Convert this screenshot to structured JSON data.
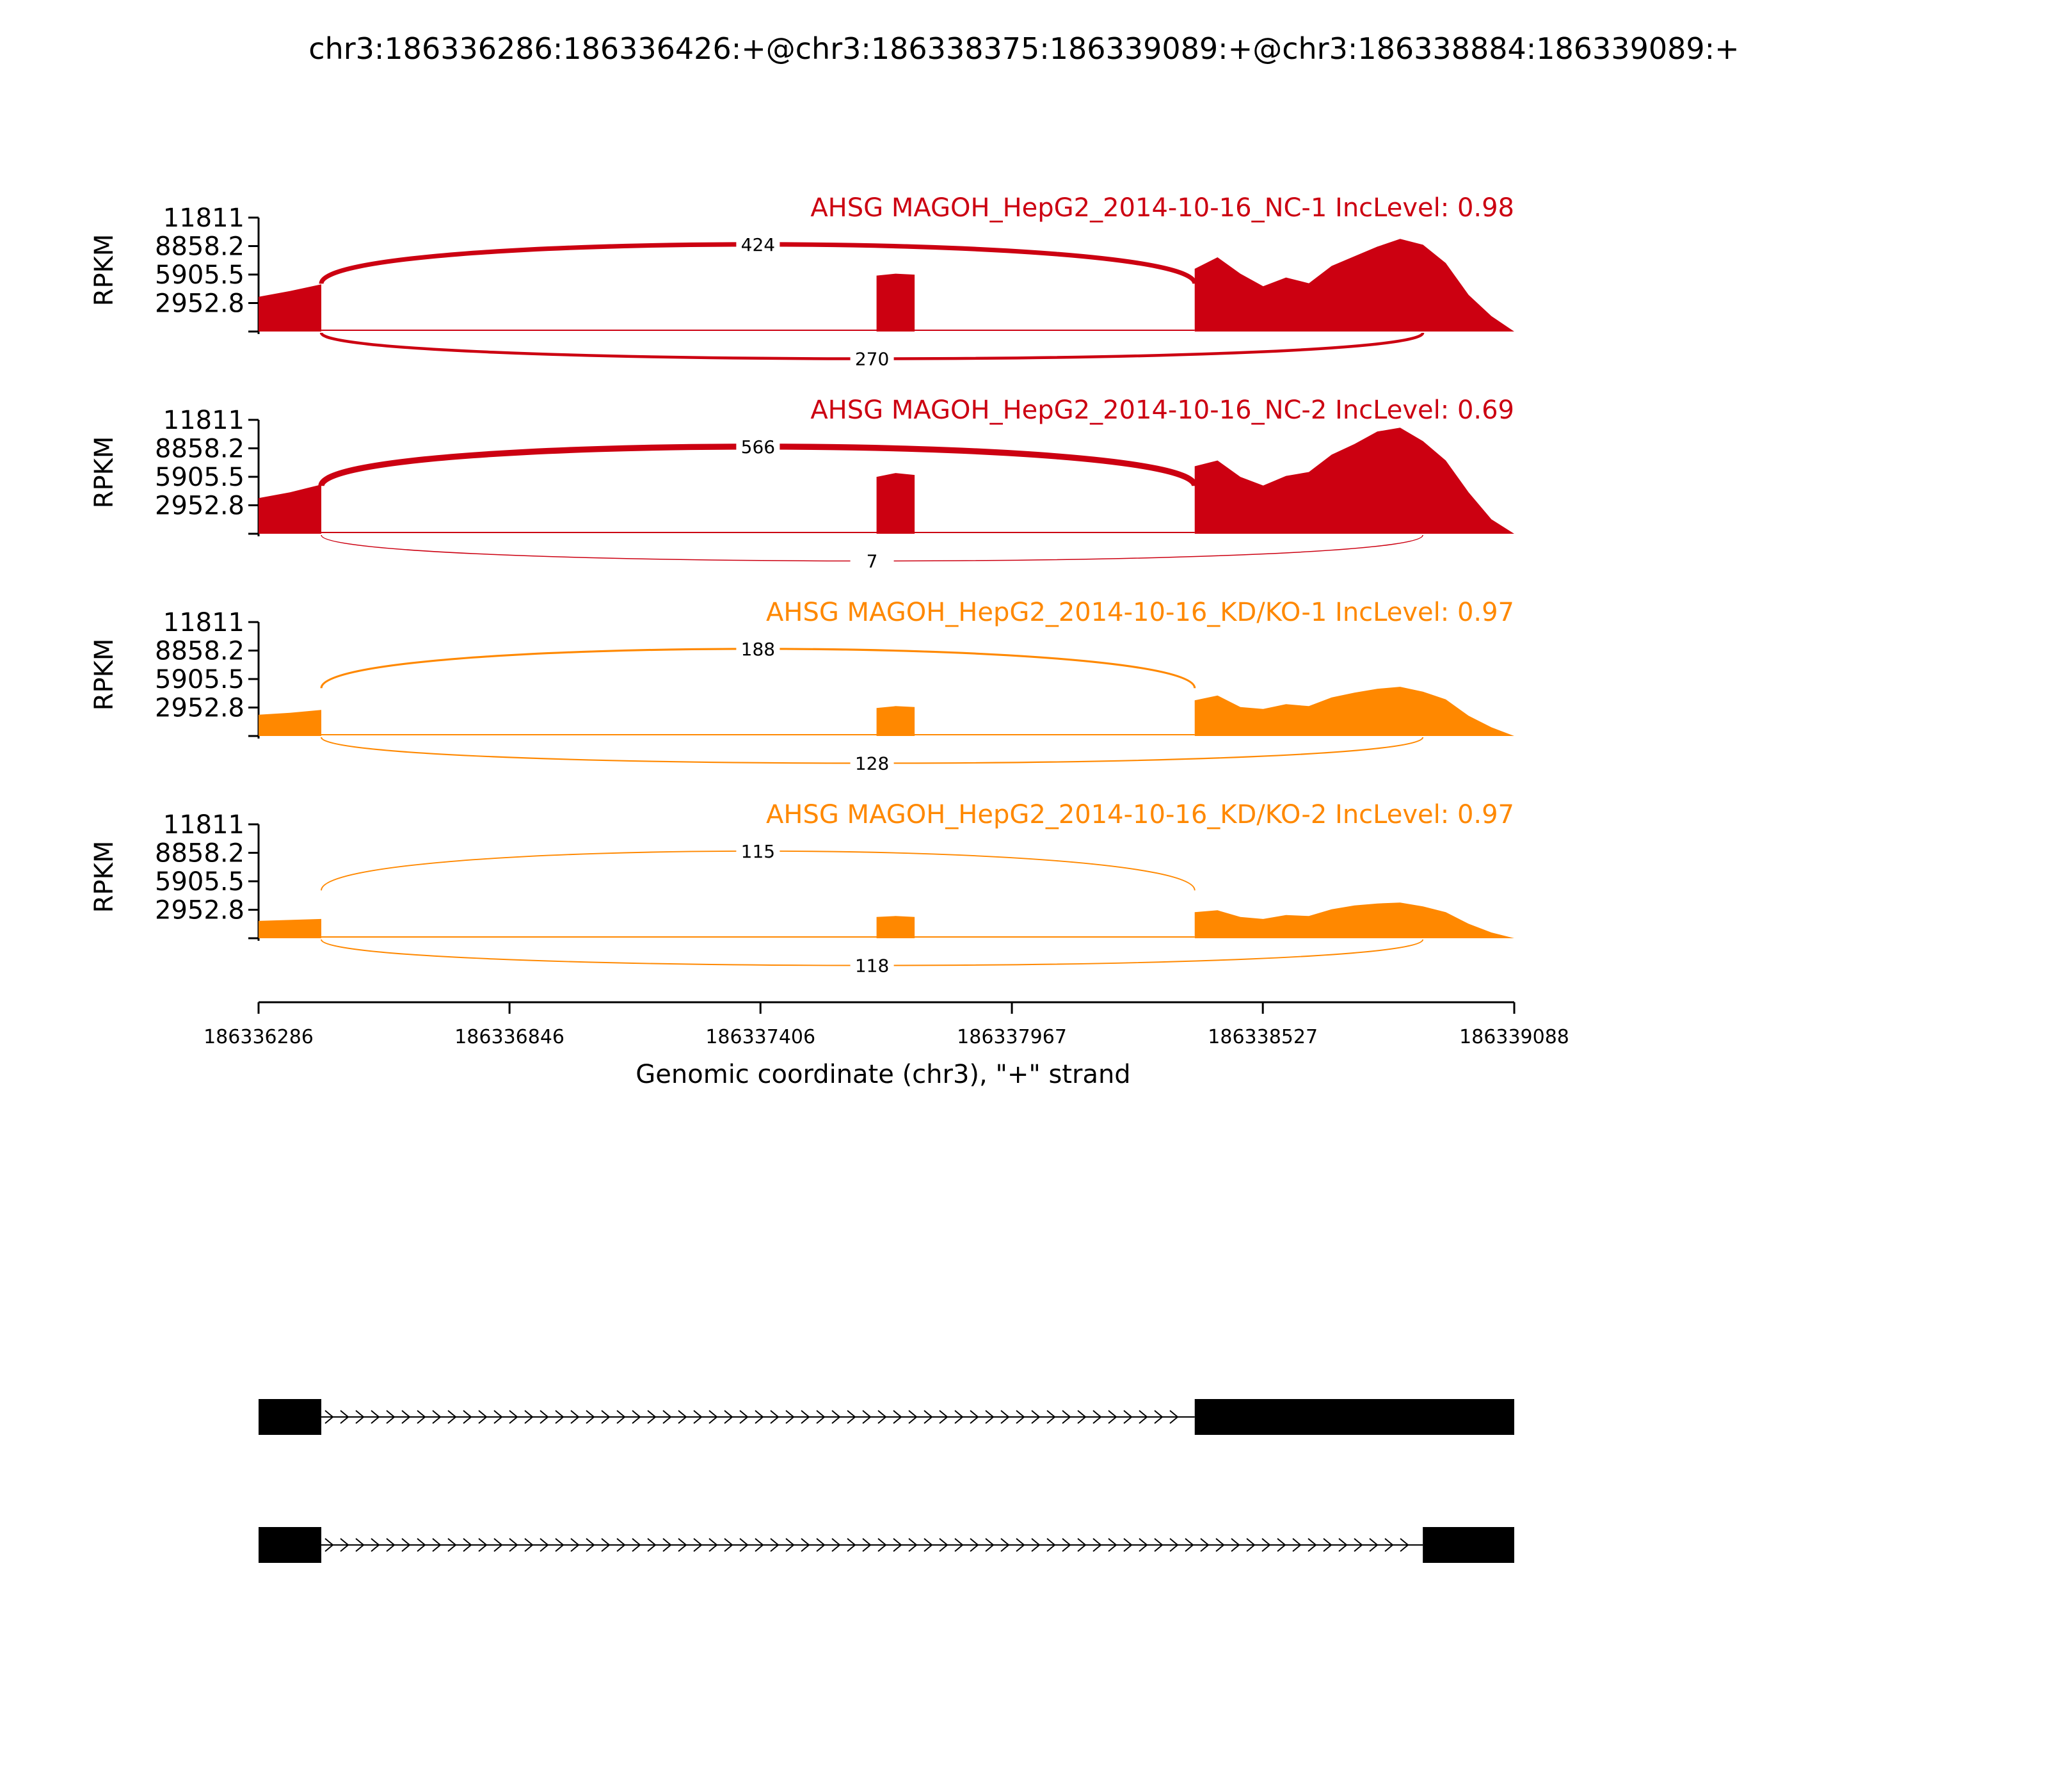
{
  "chart_data": {
    "type": "area",
    "title": "chr3:186336286:186336426:+@chr3:186338375:186339089:+@chr3:186338884:186339089:+",
    "xlabel": "Genomic coordinate (chr3), \"+\" strand",
    "ylabel": "RPKM",
    "xlim": [
      186336286,
      186339088
    ],
    "x_ticks": [
      "186336286",
      "186336846",
      "186337406",
      "186337967",
      "186338527",
      "186339088"
    ],
    "ylim": [
      0,
      11811
    ],
    "y_ticks": [
      "11811",
      "8858.2",
      "5905.5",
      "2952.8"
    ],
    "y_tick_values": [
      11811,
      8858.2,
      5905.5,
      2952.8
    ],
    "exons": {
      "upstream": [
        186336286,
        186336426
      ],
      "skipped": [
        186337665,
        186337750
      ],
      "long_downstream": [
        186338375,
        186339089
      ],
      "short_downstream": [
        186338884,
        186339089
      ]
    },
    "tracks": [
      {
        "name": "AHSG MAGOH_HepG2_2014-10-16_NC-1 IncLevel: 0.98",
        "color": "#cc0011",
        "coverage": {
          "upstream": [
            3600,
            4200,
            4900
          ],
          "skipped": [
            5800,
            6000,
            5900
          ],
          "downstream": [
            6500,
            7700,
            6000,
            4700,
            5600,
            5000,
            6800,
            7800,
            8800,
            9600,
            9000,
            7100,
            3800,
            1600,
            0
          ]
        },
        "junctions": [
          {
            "label": "424",
            "from": 186336426,
            "to": 186338375,
            "side": "above",
            "count": 424
          },
          {
            "label": "270",
            "from": 186336426,
            "to": 186338884,
            "side": "below",
            "count": 270
          }
        ]
      },
      {
        "name": "AHSG MAGOH_HepG2_2014-10-16_NC-2 IncLevel: 0.69",
        "color": "#cc0011",
        "coverage": {
          "upstream": [
            3700,
            4300,
            5100
          ],
          "skipped": [
            5900,
            6300,
            6100
          ],
          "downstream": [
            7000,
            7600,
            5900,
            5000,
            6000,
            6400,
            8200,
            9300,
            10600,
            11000,
            9600,
            7600,
            4300,
            1500,
            0
          ]
        },
        "junctions": [
          {
            "label": "566",
            "from": 186336426,
            "to": 186338375,
            "side": "above",
            "count": 566
          },
          {
            "label": "7",
            "from": 186336426,
            "to": 186338884,
            "side": "below",
            "count": 7
          }
        ]
      },
      {
        "name": "AHSG MAGOH_HepG2_2014-10-16_KD/KO-1 IncLevel: 0.97",
        "color": "#ff8800",
        "coverage": {
          "upstream": [
            2200,
            2400,
            2700
          ],
          "skipped": [
            2900,
            3100,
            3000
          ],
          "downstream": [
            3700,
            4200,
            3000,
            2800,
            3300,
            3100,
            4000,
            4500,
            4900,
            5100,
            4600,
            3800,
            2100,
            900,
            0
          ]
        },
        "junctions": [
          {
            "label": "188",
            "from": 186336426,
            "to": 186338375,
            "side": "above",
            "count": 188
          },
          {
            "label": "128",
            "from": 186336426,
            "to": 186338884,
            "side": "below",
            "count": 128
          }
        ]
      },
      {
        "name": "AHSG MAGOH_HepG2_2014-10-16_KD/KO-2 IncLevel: 0.97",
        "color": "#ff8800",
        "coverage": {
          "upstream": [
            1800,
            1900,
            2000
          ],
          "skipped": [
            2200,
            2300,
            2200
          ],
          "downstream": [
            2700,
            2900,
            2200,
            2000,
            2400,
            2300,
            3000,
            3400,
            3600,
            3700,
            3300,
            2700,
            1500,
            600,
            0
          ]
        },
        "junctions": [
          {
            "label": "115",
            "from": 186336426,
            "to": 186338375,
            "side": "above",
            "count": 115
          },
          {
            "label": "118",
            "from": 186336426,
            "to": 186338884,
            "side": "below",
            "count": 118
          }
        ]
      }
    ],
    "isoforms": [
      {
        "exons": [
          [
            186336286,
            186336426
          ],
          [
            186338375,
            186339088
          ]
        ]
      },
      {
        "exons": [
          [
            186336286,
            186336426
          ],
          [
            186338884,
            186339088
          ]
        ]
      }
    ]
  }
}
